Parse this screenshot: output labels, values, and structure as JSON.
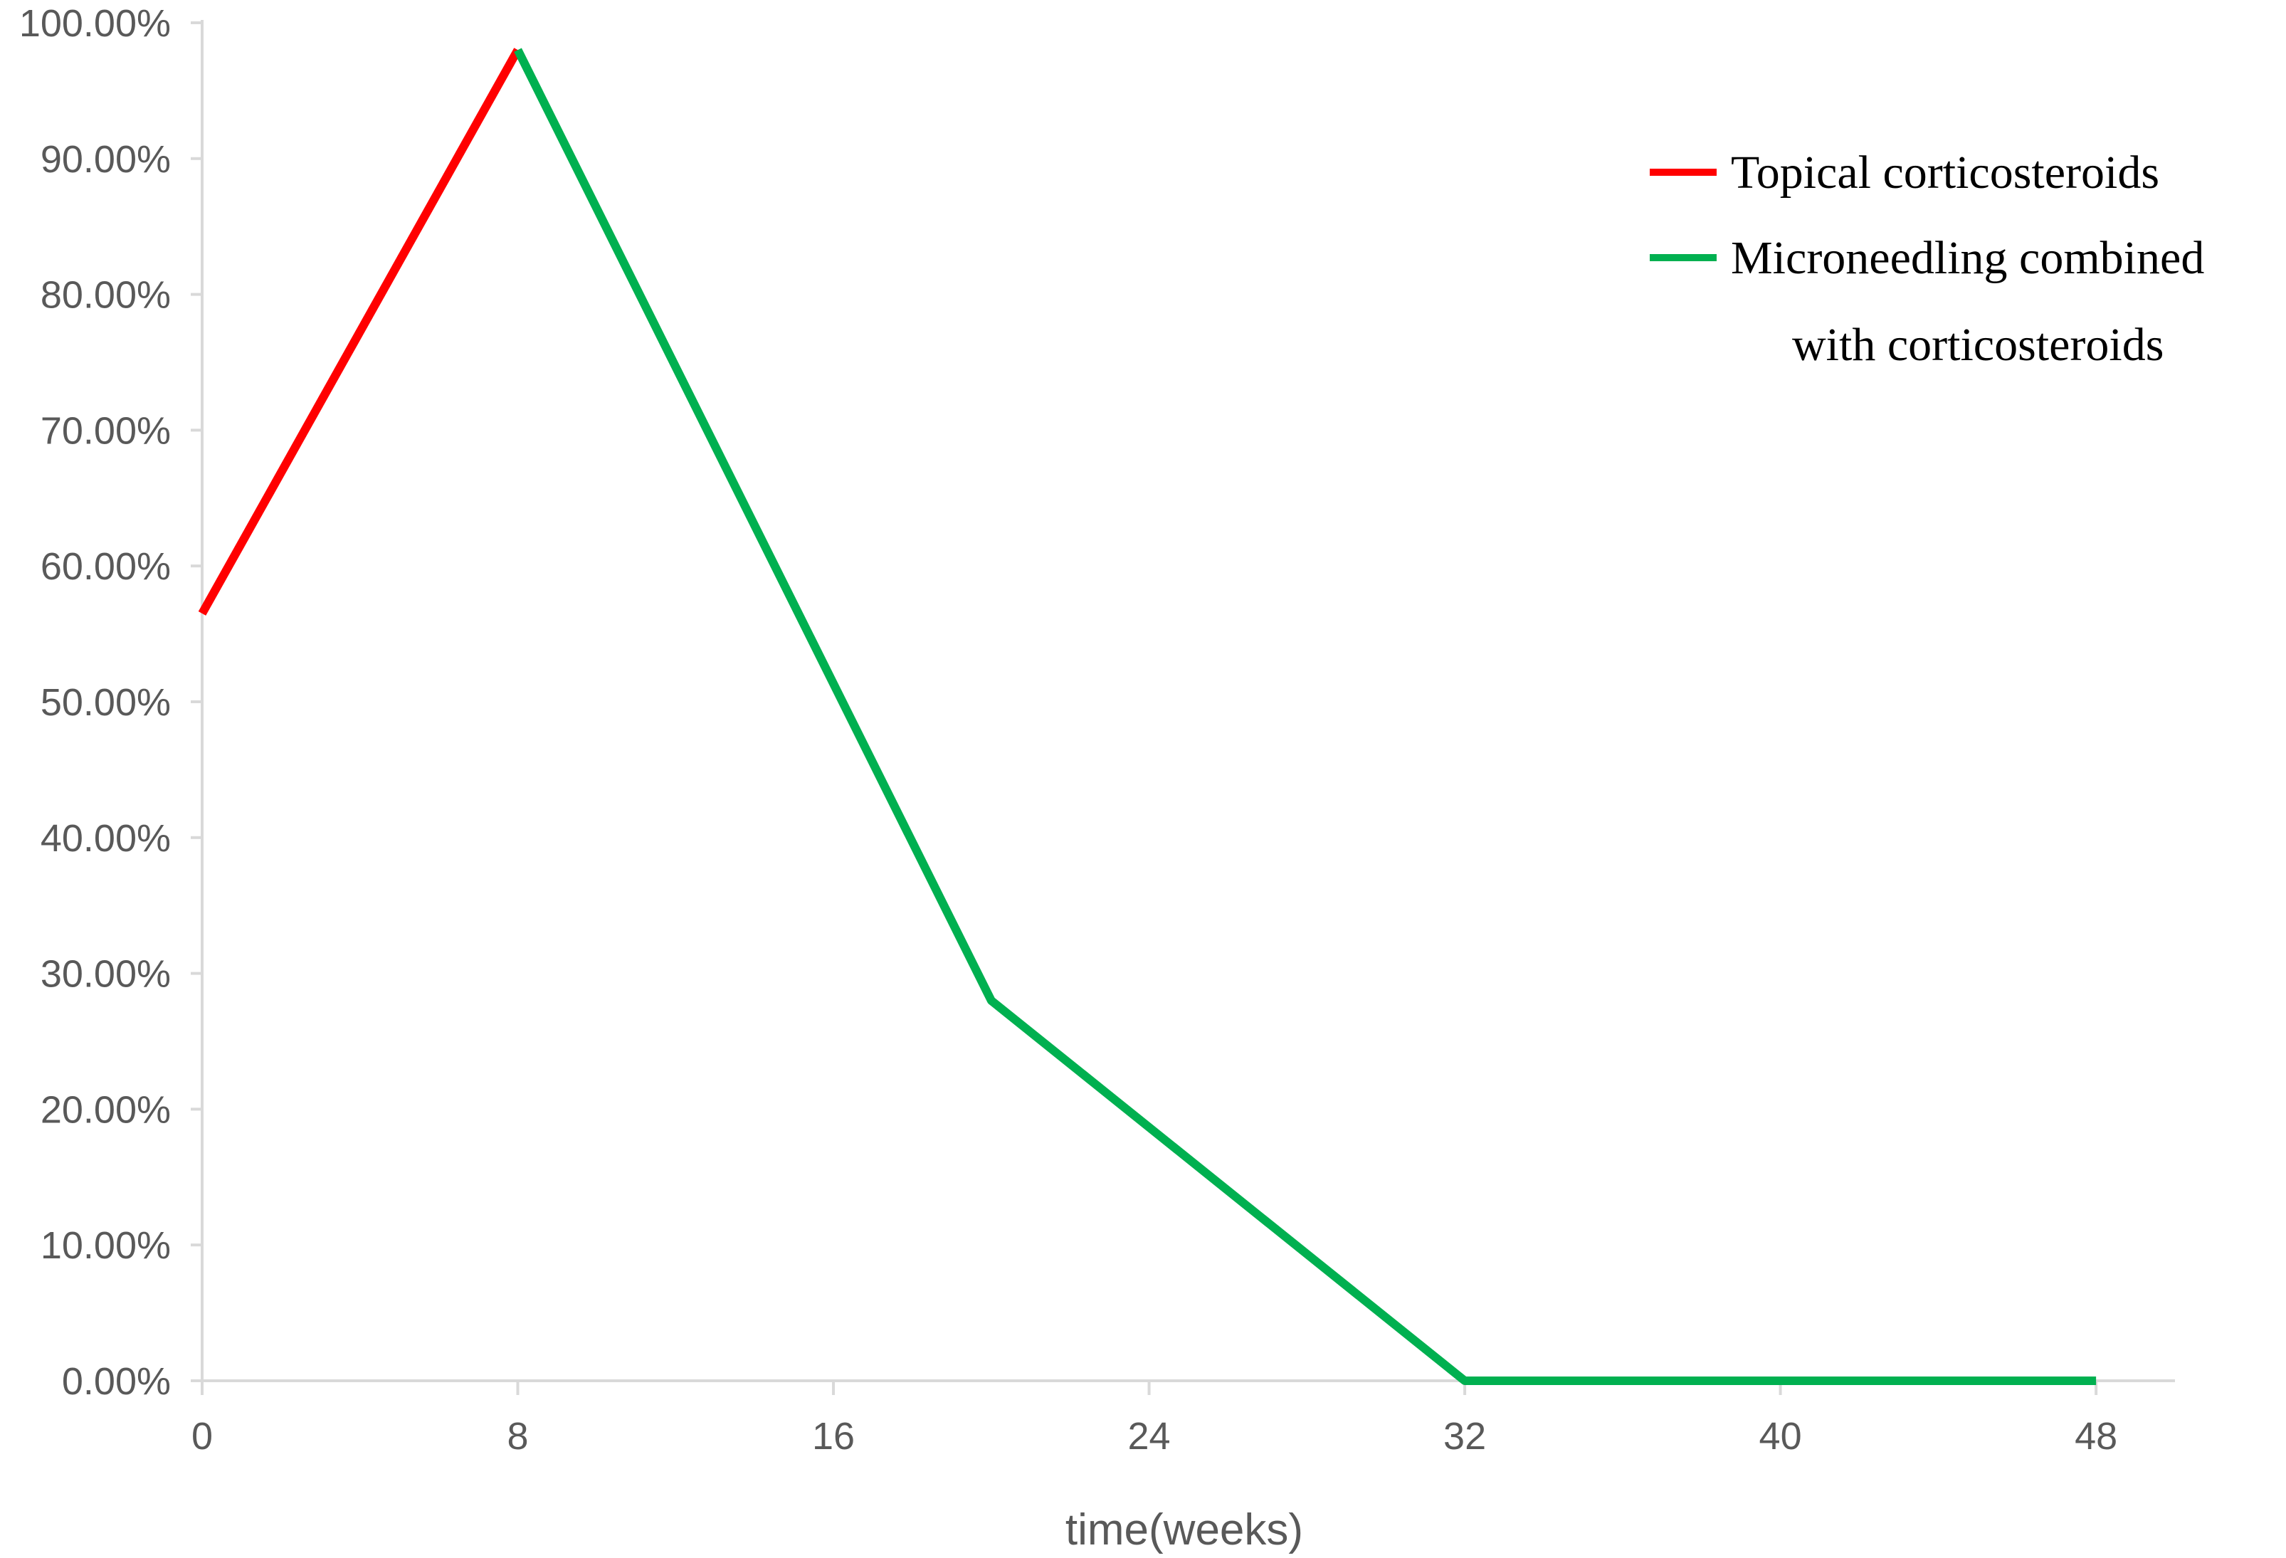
{
  "chart_data": {
    "type": "line",
    "xlabel": "time(weeks)",
    "ylabel": "",
    "x_ticks": [
      "0",
      "8",
      "16",
      "24",
      "32",
      "40",
      "48"
    ],
    "y_ticks": [
      "0.00%",
      "10.00%",
      "20.00%",
      "30.00%",
      "40.00%",
      "50.00%",
      "60.00%",
      "70.00%",
      "80.00%",
      "90.00%",
      "100.00%"
    ],
    "xlim": [
      0,
      50
    ],
    "ylim": [
      0,
      100
    ],
    "grid": false,
    "legend_position": "top-right",
    "series": [
      {
        "name": "Topical corticosteroids",
        "color": "#ff0000",
        "x": [
          0,
          8
        ],
        "y": [
          56.5,
          98.0
        ]
      },
      {
        "name": "Microneedling combined with corticosteroids",
        "legend_lines": [
          "Microneedling combined",
          "with corticosteroids"
        ],
        "color": "#00b050",
        "x": [
          8,
          20,
          32,
          48
        ],
        "y": [
          98.0,
          28.0,
          0.0,
          0.0
        ]
      }
    ],
    "axis_color": "#d9d9d9"
  }
}
